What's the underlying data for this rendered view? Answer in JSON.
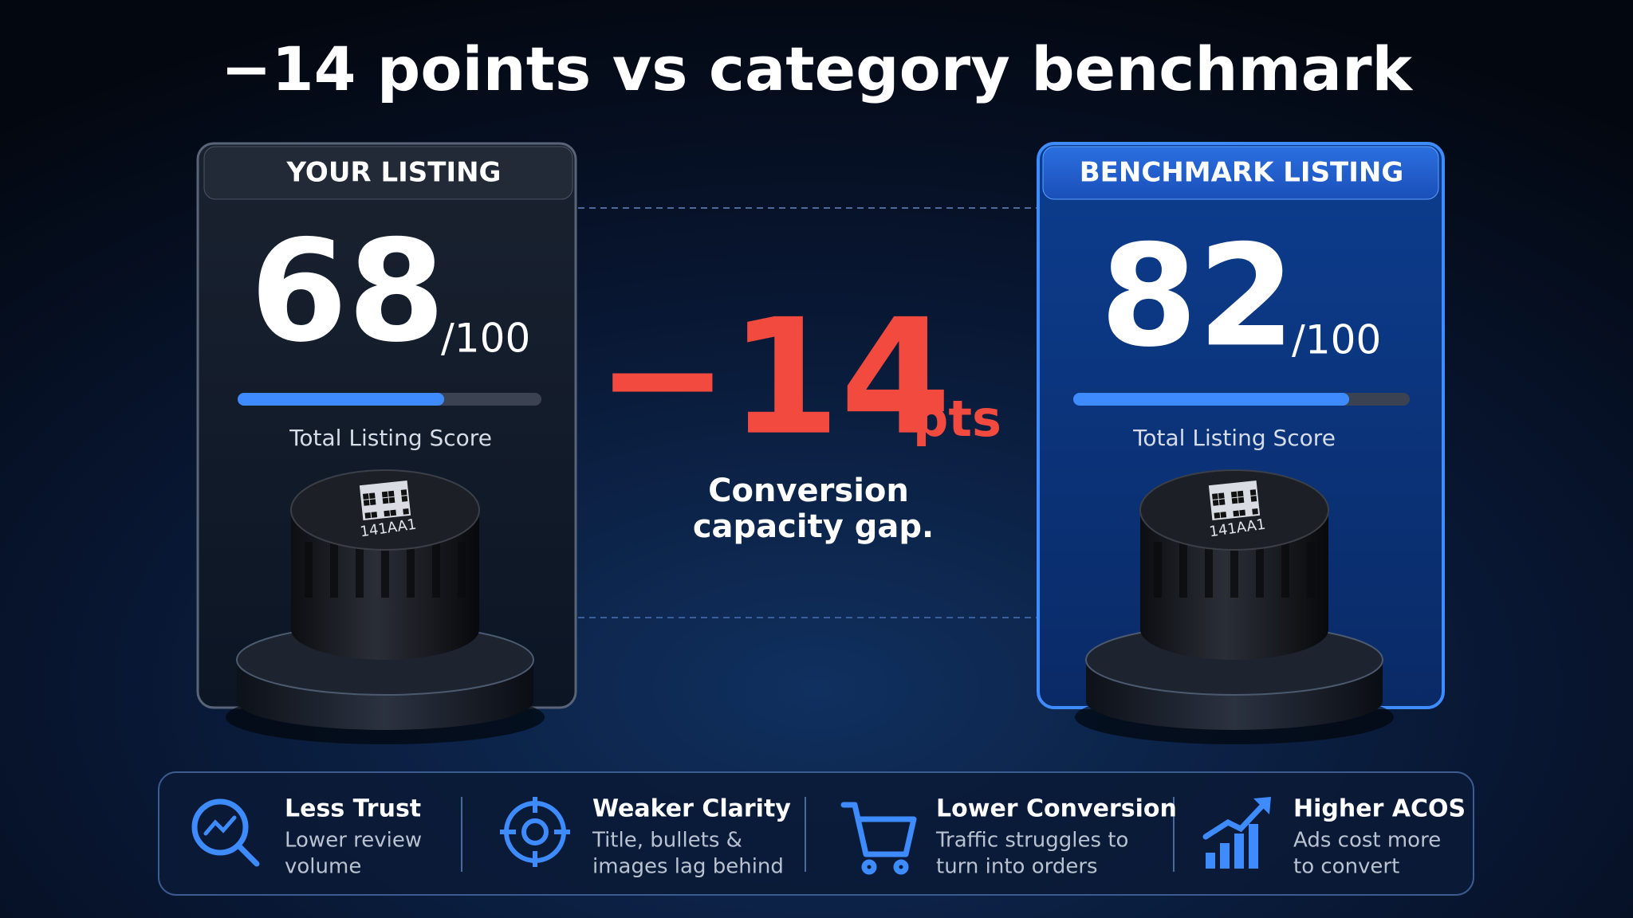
{
  "title": "−14 points vs category benchmark",
  "cards": [
    {
      "header": "YOUR LISTING",
      "score": 68,
      "scale_max": {
        "value": 100,
        "label": "/100"
      },
      "score_caption": "Total Listing Score",
      "product_label": "141AA1"
    },
    {
      "header": "BENCHMARK LISTING",
      "score": 82,
      "scale_max": {
        "value": 100,
        "label": "/100"
      },
      "score_caption": "Total Listing Score",
      "product_label": "141AA1"
    }
  ],
  "gap": {
    "value": {
      "value": -14,
      "label": "−14"
    },
    "unit": "pts",
    "caption": [
      "Conversion",
      "capacity gap."
    ]
  },
  "impacts": [
    {
      "title": "Less Trust",
      "description": [
        "Lower review",
        "volume"
      ]
    },
    {
      "title": "Weaker Clarity",
      "description": [
        "Title, bullets &",
        "images lag behind"
      ]
    },
    {
      "title": "Lower Conversion",
      "description": [
        "Traffic struggles to",
        "turn into orders"
      ]
    },
    {
      "title": "Higher ACOS",
      "description": [
        "Ads cost more",
        "to convert"
      ]
    }
  ]
}
